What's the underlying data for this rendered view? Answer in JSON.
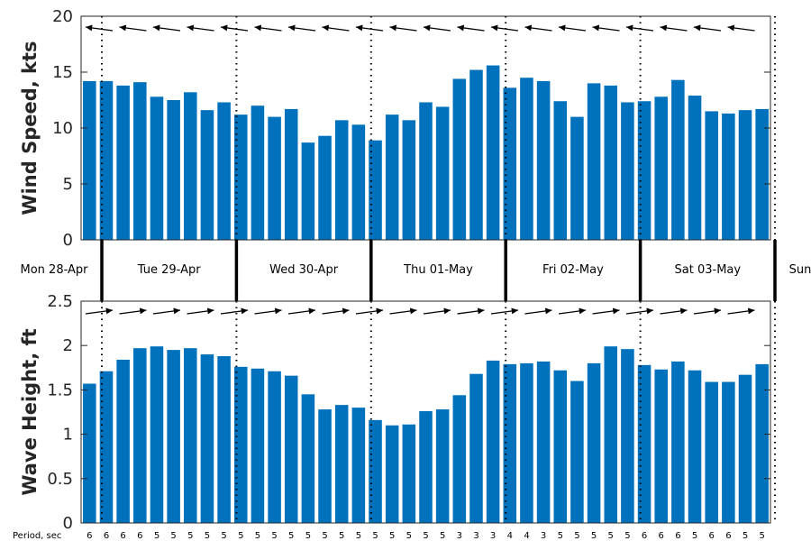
{
  "chart_data": [
    {
      "type": "bar",
      "ylabel": "Wind Speed, kts",
      "ylim": [
        0,
        20
      ],
      "yticks": [
        0,
        5,
        10,
        15,
        20
      ],
      "color": "#0072BD",
      "values": [
        14.2,
        14.2,
        13.8,
        14.1,
        12.8,
        12.5,
        13.2,
        11.6,
        12.3,
        11.2,
        12.0,
        11.0,
        11.7,
        8.7,
        9.3,
        10.7,
        10.3,
        8.9,
        11.2,
        10.7,
        12.3,
        11.9,
        14.4,
        15.2,
        15.6,
        13.6,
        14.5,
        14.2,
        12.4,
        11.0,
        14.0,
        13.8,
        12.3,
        12.4,
        12.8,
        14.3,
        12.9,
        11.5,
        11.3,
        11.6,
        11.7
      ],
      "direction_arrows": "left-pointing arrows along top"
    },
    {
      "type": "bar",
      "ylabel": "Wave Height, ft",
      "ylim": [
        0,
        2.5
      ],
      "yticks": [
        0,
        0.5,
        1,
        1.5,
        2,
        2.5
      ],
      "color": "#0072BD",
      "values": [
        1.57,
        1.71,
        1.84,
        1.97,
        1.99,
        1.95,
        1.97,
        1.9,
        1.88,
        1.76,
        1.74,
        1.71,
        1.66,
        1.45,
        1.28,
        1.33,
        1.3,
        1.16,
        1.1,
        1.11,
        1.26,
        1.28,
        1.44,
        1.68,
        1.83,
        1.79,
        1.8,
        1.82,
        1.72,
        1.6,
        1.8,
        1.99,
        1.96,
        1.78,
        1.73,
        1.82,
        1.72,
        1.59,
        1.59,
        1.67,
        1.79
      ],
      "direction_arrows": "right-pointing arrows along top"
    }
  ],
  "days": [
    "Mon 28-Apr",
    "Tue 29-Apr",
    "Wed 30-Apr",
    "Thu 01-May",
    "Fri 02-May",
    "Sat 03-May",
    "Sun"
  ],
  "period_label": "Period, sec",
  "periods": [
    "6",
    "6",
    "6",
    "6",
    "5",
    "5",
    "5",
    "5",
    "5",
    "5",
    "5",
    "5",
    "5",
    "5",
    "5",
    "5",
    "5",
    "5",
    "5",
    "5",
    "5",
    "5",
    "3",
    "3",
    "3",
    "4",
    "4",
    "3",
    "5",
    "5",
    "5",
    "5",
    "5",
    "6",
    "6",
    "6",
    "5",
    "6",
    "6",
    "5",
    "5"
  ]
}
